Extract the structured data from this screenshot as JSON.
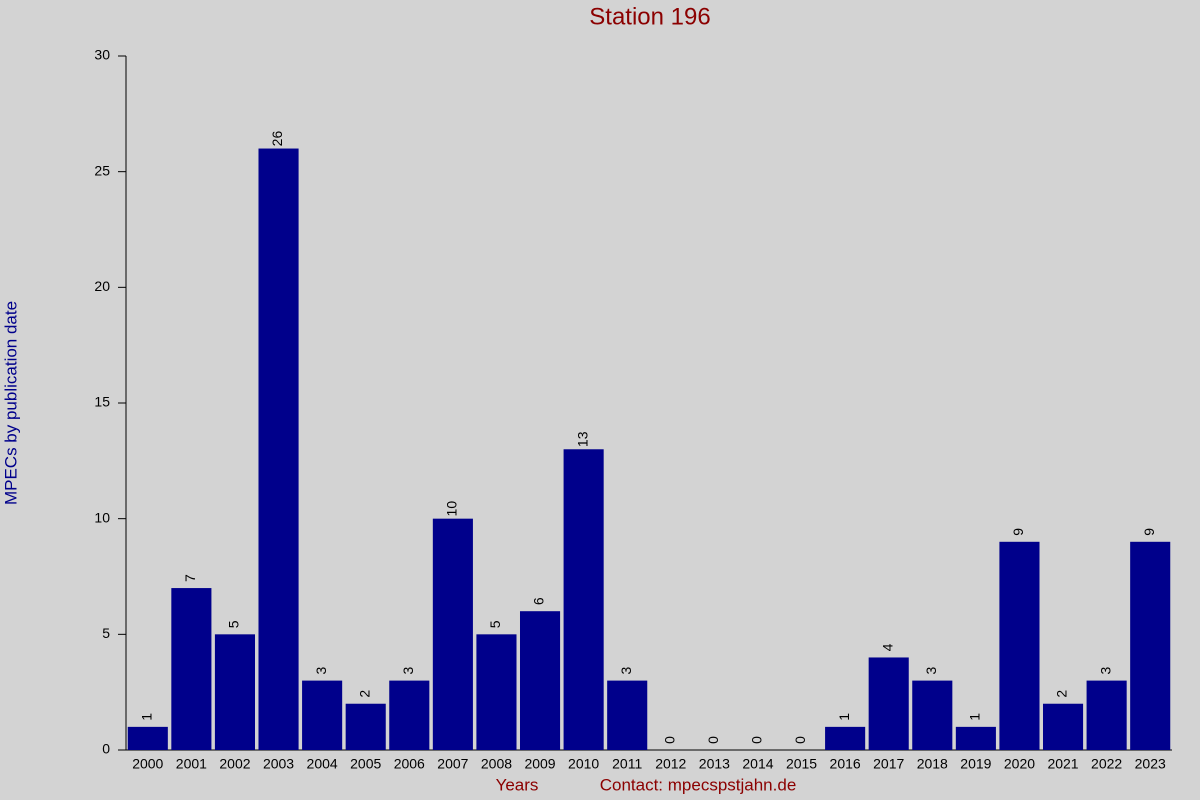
{
  "chart_data": {
    "type": "bar",
    "title": "Station 196",
    "y_label": "MPECs by publication date",
    "x_label": "Years",
    "contact": "Contact: mpecspstjahn.de",
    "categories": [
      "2000",
      "2001",
      "2002",
      "2003",
      "2004",
      "2005",
      "2006",
      "2007",
      "2008",
      "2009",
      "2010",
      "2011",
      "2012",
      "2013",
      "2014",
      "2015",
      "2016",
      "2017",
      "2018",
      "2019",
      "2020",
      "2021",
      "2022",
      "2023"
    ],
    "values": [
      1,
      7,
      5,
      26,
      3,
      2,
      3,
      10,
      5,
      6,
      13,
      3,
      0,
      0,
      0,
      0,
      1,
      4,
      3,
      1,
      9,
      2,
      3,
      9
    ],
    "color": "#00008b",
    "ylim": [
      0,
      30
    ],
    "yticks": [
      0,
      5,
      10,
      15,
      20,
      25,
      30
    ]
  }
}
